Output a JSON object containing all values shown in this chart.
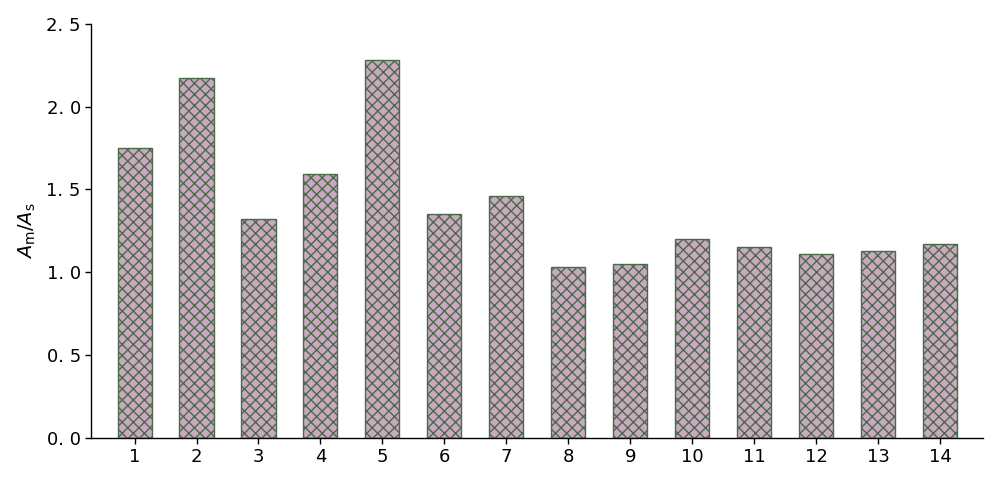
{
  "categories": [
    "1",
    "2",
    "3",
    "4",
    "5",
    "6",
    "7",
    "8",
    "9",
    "10",
    "11",
    "12",
    "13",
    "14"
  ],
  "values": [
    1.75,
    2.17,
    1.32,
    1.59,
    2.28,
    1.35,
    1.46,
    1.03,
    1.05,
    1.2,
    1.15,
    1.11,
    1.13,
    1.17
  ],
  "bar_facecolor": "#c9a8c0",
  "bar_edgecolor": "#4a6b4a",
  "bar_hatch": "xxx",
  "ylim": [
    0,
    2.5
  ],
  "yticks": [
    0.0,
    0.5,
    1.0,
    1.5,
    2.0,
    2.5
  ],
  "ytick_labels": [
    "0. 0",
    "0. 5",
    "1. 0",
    "1. 5",
    "2. 0",
    "2. 5"
  ],
  "background_color": "#ffffff",
  "bar_width": 0.55,
  "tick_fontsize": 13,
  "ylabel_fontsize": 14
}
